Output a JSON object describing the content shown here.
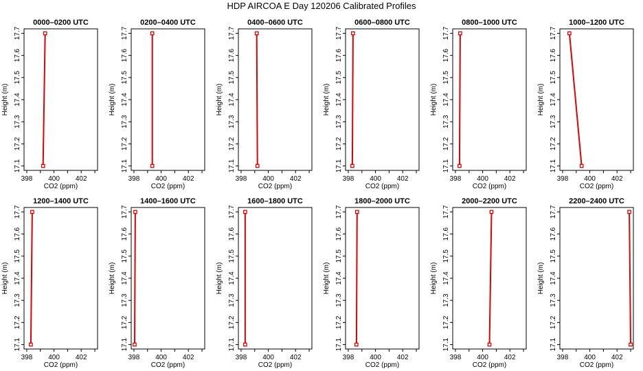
{
  "figure": {
    "title": "HDP AIRCOA E  Day 120206  Calibrated Profiles"
  },
  "chart_data": [
    {
      "type": "line",
      "title": "0000–0200 UTC",
      "xlabel": "CO2 (ppm)",
      "ylabel": "Height (m)",
      "xlim": [
        397.8,
        403.2
      ],
      "ylim": [
        17.08,
        17.72
      ],
      "xticks": [
        398,
        400,
        402
      ],
      "yticks": [
        17.1,
        17.2,
        17.3,
        17.4,
        17.5,
        17.6,
        17.7
      ],
      "series": [
        {
          "x": [
            399.2,
            399.35
          ],
          "y": [
            17.1,
            17.7
          ]
        }
      ],
      "color": "#e00000",
      "grid": false
    },
    {
      "type": "line",
      "title": "0200–0400 UTC",
      "xlabel": "CO2 (ppm)",
      "ylabel": "Height (m)",
      "xlim": [
        397.8,
        403.2
      ],
      "ylim": [
        17.08,
        17.72
      ],
      "xticks": [
        398,
        400,
        402
      ],
      "yticks": [
        17.1,
        17.2,
        17.3,
        17.4,
        17.5,
        17.6,
        17.7
      ],
      "series": [
        {
          "x": [
            399.35,
            399.35
          ],
          "y": [
            17.1,
            17.7
          ]
        }
      ],
      "color": "#e00000",
      "grid": false
    },
    {
      "type": "line",
      "title": "0400–0600 UTC",
      "xlabel": "CO2 (ppm)",
      "ylabel": "Height (m)",
      "xlim": [
        397.8,
        403.2
      ],
      "ylim": [
        17.08,
        17.72
      ],
      "xticks": [
        398,
        400,
        402
      ],
      "yticks": [
        17.1,
        17.2,
        17.3,
        17.4,
        17.5,
        17.6,
        17.7
      ],
      "series": [
        {
          "x": [
            399.2,
            399.15
          ],
          "y": [
            17.1,
            17.7
          ]
        }
      ],
      "color": "#e00000",
      "grid": false
    },
    {
      "type": "line",
      "title": "0600–0800 UTC",
      "xlabel": "CO2 (ppm)",
      "ylabel": "Height (m)",
      "xlim": [
        397.8,
        403.2
      ],
      "ylim": [
        17.08,
        17.72
      ],
      "xticks": [
        398,
        400,
        402
      ],
      "yticks": [
        17.1,
        17.2,
        17.3,
        17.4,
        17.5,
        17.6,
        17.7
      ],
      "series": [
        {
          "x": [
            398.3,
            398.35
          ],
          "y": [
            17.1,
            17.7
          ]
        }
      ],
      "color": "#e00000",
      "grid": false
    },
    {
      "type": "line",
      "title": "0800–1000 UTC",
      "xlabel": "CO2 (ppm)",
      "ylabel": "Height (m)",
      "xlim": [
        397.8,
        403.2
      ],
      "ylim": [
        17.08,
        17.72
      ],
      "xticks": [
        398,
        400,
        402
      ],
      "yticks": [
        17.1,
        17.2,
        17.3,
        17.4,
        17.5,
        17.6,
        17.7
      ],
      "series": [
        {
          "x": [
            398.3,
            398.35
          ],
          "y": [
            17.1,
            17.7
          ]
        }
      ],
      "color": "#e00000",
      "grid": false
    },
    {
      "type": "line",
      "title": "1000–1200 UTC",
      "xlabel": "CO2 (ppm)",
      "ylabel": "Height (m)",
      "xlim": [
        397.8,
        403.2
      ],
      "ylim": [
        17.08,
        17.72
      ],
      "xticks": [
        398,
        400,
        402
      ],
      "yticks": [
        17.1,
        17.2,
        17.3,
        17.4,
        17.5,
        17.6,
        17.7
      ],
      "series": [
        {
          "x": [
            399.4,
            398.5
          ],
          "y": [
            17.1,
            17.7
          ]
        }
      ],
      "color": "#e00000",
      "grid": false
    },
    {
      "type": "line",
      "title": "1200–1400 UTC",
      "xlabel": "CO2 (ppm)",
      "ylabel": "Height (m)",
      "xlim": [
        397.8,
        403.2
      ],
      "ylim": [
        17.08,
        17.72
      ],
      "xticks": [
        398,
        400,
        402
      ],
      "yticks": [
        17.1,
        17.2,
        17.3,
        17.4,
        17.5,
        17.6,
        17.7
      ],
      "series": [
        {
          "x": [
            398.3,
            398.4
          ],
          "y": [
            17.1,
            17.7
          ]
        }
      ],
      "color": "#e00000",
      "grid": false
    },
    {
      "type": "line",
      "title": "1400–1600 UTC",
      "xlabel": "CO2 (ppm)",
      "ylabel": "Height (m)",
      "xlim": [
        397.8,
        403.2
      ],
      "ylim": [
        17.08,
        17.72
      ],
      "xticks": [
        398,
        400,
        402
      ],
      "yticks": [
        17.1,
        17.2,
        17.3,
        17.4,
        17.5,
        17.6,
        17.7
      ],
      "series": [
        {
          "x": [
            398.05,
            398.1
          ],
          "y": [
            17.1,
            17.7
          ]
        }
      ],
      "color": "#e00000",
      "grid": false
    },
    {
      "type": "line",
      "title": "1600–1800 UTC",
      "xlabel": "CO2 (ppm)",
      "ylabel": "Height (m)",
      "xlim": [
        397.8,
        403.2
      ],
      "ylim": [
        17.08,
        17.72
      ],
      "xticks": [
        398,
        400,
        402
      ],
      "yticks": [
        17.1,
        17.2,
        17.3,
        17.4,
        17.5,
        17.6,
        17.7
      ],
      "series": [
        {
          "x": [
            398.3,
            398.3
          ],
          "y": [
            17.1,
            17.7
          ]
        }
      ],
      "color": "#e00000",
      "grid": false
    },
    {
      "type": "line",
      "title": "1800–2000 UTC",
      "xlabel": "CO2 (ppm)",
      "ylabel": "Height (m)",
      "xlim": [
        397.8,
        403.2
      ],
      "ylim": [
        17.08,
        17.72
      ],
      "xticks": [
        398,
        400,
        402
      ],
      "yticks": [
        17.1,
        17.2,
        17.3,
        17.4,
        17.5,
        17.6,
        17.7
      ],
      "series": [
        {
          "x": [
            398.6,
            398.65
          ],
          "y": [
            17.1,
            17.7
          ]
        }
      ],
      "color": "#e00000",
      "grid": false
    },
    {
      "type": "line",
      "title": "2000–2200 UTC",
      "xlabel": "CO2 (ppm)",
      "ylabel": "Height (m)",
      "xlim": [
        397.8,
        403.2
      ],
      "ylim": [
        17.08,
        17.72
      ],
      "xticks": [
        398,
        400,
        402
      ],
      "yticks": [
        17.1,
        17.2,
        17.3,
        17.4,
        17.5,
        17.6,
        17.7
      ],
      "series": [
        {
          "x": [
            400.5,
            400.65
          ],
          "y": [
            17.1,
            17.7
          ]
        }
      ],
      "color": "#e00000",
      "grid": false
    },
    {
      "type": "line",
      "title": "2200–2400 UTC",
      "xlabel": "CO2 (ppm)",
      "ylabel": "Height (m)",
      "xlim": [
        397.8,
        403.2
      ],
      "ylim": [
        17.08,
        17.72
      ],
      "xticks": [
        398,
        400,
        402
      ],
      "yticks": [
        17.1,
        17.2,
        17.3,
        17.4,
        17.5,
        17.6,
        17.7
      ],
      "series": [
        {
          "x": [
            403.0,
            402.9
          ],
          "y": [
            17.1,
            17.7
          ]
        }
      ],
      "color": "#e00000",
      "grid": false
    }
  ]
}
